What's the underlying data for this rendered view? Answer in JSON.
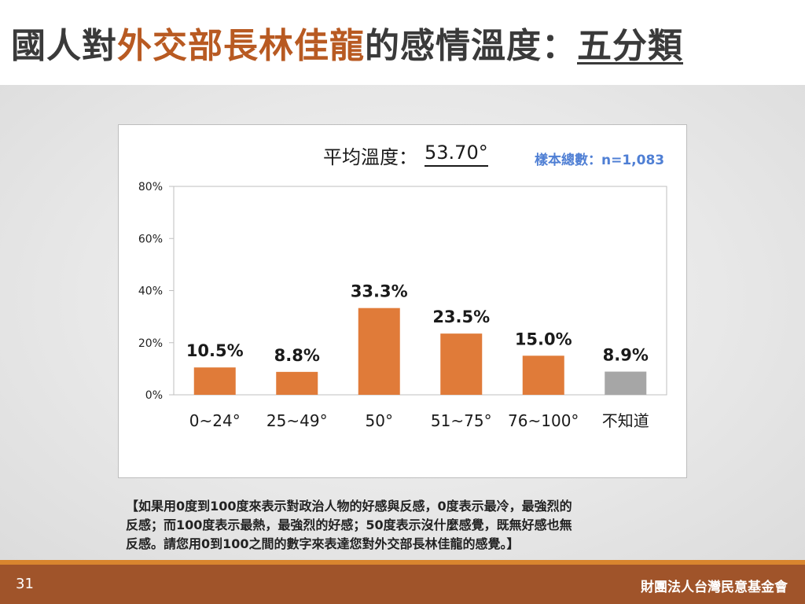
{
  "header": {
    "title_prefix": "國人對",
    "title_highlight": "外交部長林佳龍",
    "title_middle": "的感情溫度：",
    "title_suffix": "五分類"
  },
  "chart_header": {
    "avg_label": "平均溫度：",
    "avg_value": "53.70°",
    "sample_size": "樣本總數：n=1,083"
  },
  "chart_data": {
    "type": "bar",
    "categories": [
      "0~24°",
      "25~49°",
      "50°",
      "51~75°",
      "76~100°",
      "不知道"
    ],
    "values": [
      10.5,
      8.8,
      33.3,
      23.5,
      15.0,
      8.9
    ],
    "data_labels": [
      "10.5%",
      "8.8%",
      "33.3%",
      "23.5%",
      "15.0%",
      "8.9%"
    ],
    "bar_colors": [
      "#e07b39",
      "#e07b39",
      "#e07b39",
      "#e07b39",
      "#e07b39",
      "#a6a6a6"
    ],
    "yticks": [
      0,
      20,
      40,
      60,
      80
    ],
    "ytick_labels": [
      "0%",
      "20%",
      "40%",
      "60%",
      "80%"
    ],
    "ylim": [
      0,
      80
    ],
    "grid": false,
    "title": "",
    "xlabel": "",
    "ylabel": ""
  },
  "footnote": {
    "line1": "【如果用0度到100度來表示對政治人物的好感與反感，0度表示最冷，最強烈的",
    "line2": "反感；而100度表示最熱，最強烈的好感；50度表示沒什麼感覺，既無好感也無",
    "line3": "反感。請您用0到100之間的數字來表達您對外交部長林佳龍的感覺。】"
  },
  "footer": {
    "page_number": "31",
    "organization": "財團法人台灣民意基金會"
  },
  "colors": {
    "accent_orange": "#e07b39",
    "title_highlight": "#b85a22",
    "footer_brown": "#a0542a",
    "sample_blue": "#4f7fd4"
  }
}
